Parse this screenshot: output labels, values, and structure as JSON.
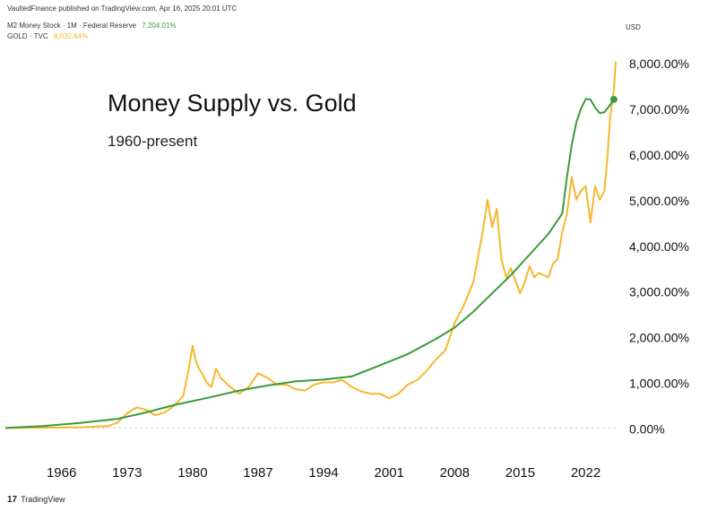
{
  "header": {
    "publisher_line": "VaultedFinance published on TradingView.com, Apr 16, 2025 20:01 UTC",
    "currency": "USD"
  },
  "legend": {
    "m2": {
      "label": "M2 Money Stock · 1M · Federal Reserve",
      "value": "7,204.01%",
      "color": "#3a9a3a"
    },
    "gold": {
      "label": "GOLD · TVC",
      "value": "8,032.64%",
      "color": "#f5b82e"
    }
  },
  "title": "Money Supply vs. Gold",
  "subtitle": "1960-present",
  "footer": {
    "logo": "17",
    "brand": "TradingView"
  },
  "chart_data": {
    "type": "line",
    "xlabel": "",
    "ylabel": "",
    "xlim": [
      1960,
      2025.3
    ],
    "ylim": [
      -150,
      8200
    ],
    "x_ticks": [
      "1966",
      "1973",
      "1980",
      "1987",
      "1994",
      "2001",
      "2008",
      "2015",
      "2022"
    ],
    "x_tick_values": [
      1966,
      1973,
      1980,
      1987,
      1994,
      2001,
      2008,
      2015,
      2022
    ],
    "y_ticks": [
      "0.00%",
      "1,000.00%",
      "2,000.00%",
      "3,000.00%",
      "4,000.00%",
      "5,000.00%",
      "6,000.00%",
      "7,000.00%",
      "8,000.00%"
    ],
    "y_tick_values": [
      0,
      1000,
      2000,
      3000,
      4000,
      5000,
      6000,
      7000,
      8000
    ],
    "grid": false,
    "baseline": 0,
    "series": [
      {
        "name": "M2 Money Stock",
        "color": "#3a9a3a",
        "x": [
          1960,
          1964,
          1968,
          1972,
          1975,
          1978,
          1982,
          1985,
          1988,
          1991,
          1994,
          1997,
          2000,
          2003,
          2006,
          2008,
          2010,
          2012,
          2014,
          2016,
          2018,
          2019.5,
          2020,
          2020.5,
          2021,
          2021.5,
          2022,
          2022.5,
          2023,
          2023.5,
          2024,
          2024.5,
          2025
        ],
        "y": [
          0,
          40,
          110,
          200,
          340,
          500,
          680,
          820,
          930,
          1020,
          1060,
          1130,
          1370,
          1620,
          1950,
          2200,
          2550,
          2950,
          3350,
          3800,
          4250,
          4700,
          5500,
          6200,
          6700,
          7000,
          7210,
          7200,
          7020,
          6900,
          6920,
          7050,
          7200
        ]
      },
      {
        "name": "GOLD",
        "color": "#f5b82e",
        "x": [
          1960,
          1968,
          1971,
          1972,
          1973,
          1974,
          1975,
          1976,
          1977,
          1978,
          1979,
          1979.5,
          1980,
          1980.3,
          1980.7,
          1981,
          1981.5,
          1982,
          1982.5,
          1983,
          1984,
          1985,
          1986,
          1987,
          1988,
          1989,
          1990,
          1991,
          1992,
          1993,
          1994,
          1995,
          1996,
          1997,
          1998,
          1999,
          2000,
          2001,
          2002,
          2003,
          2004,
          2005,
          2006,
          2007,
          2008,
          2009,
          2010,
          2011,
          2011.5,
          2012,
          2012.5,
          2013,
          2013.5,
          2014,
          2015,
          2015.5,
          2016,
          2016.5,
          2017,
          2018,
          2018.5,
          2019,
          2019.5,
          2020,
          2020.5,
          2021,
          2021.5,
          2022,
          2022.5,
          2023,
          2023.5,
          2024,
          2024.3,
          2024.6,
          2025,
          2025.2
        ],
        "y": [
          0,
          15,
          40,
          120,
          320,
          450,
          400,
          280,
          340,
          480,
          700,
          1200,
          1800,
          1500,
          1300,
          1200,
          1000,
          900,
          1300,
          1100,
          900,
          750,
          900,
          1200,
          1100,
          950,
          950,
          850,
          820,
          950,
          1000,
          1000,
          1050,
          900,
          800,
          750,
          750,
          650,
          750,
          950,
          1050,
          1250,
          1500,
          1700,
          2300,
          2700,
          3200,
          4300,
          5000,
          4400,
          4800,
          3700,
          3300,
          3500,
          2950,
          3200,
          3550,
          3300,
          3400,
          3300,
          3600,
          3700,
          4300,
          4700,
          5500,
          5000,
          5200,
          5300,
          4500,
          5300,
          5000,
          5200,
          5900,
          6800,
          7400,
          8030
        ]
      }
    ]
  }
}
